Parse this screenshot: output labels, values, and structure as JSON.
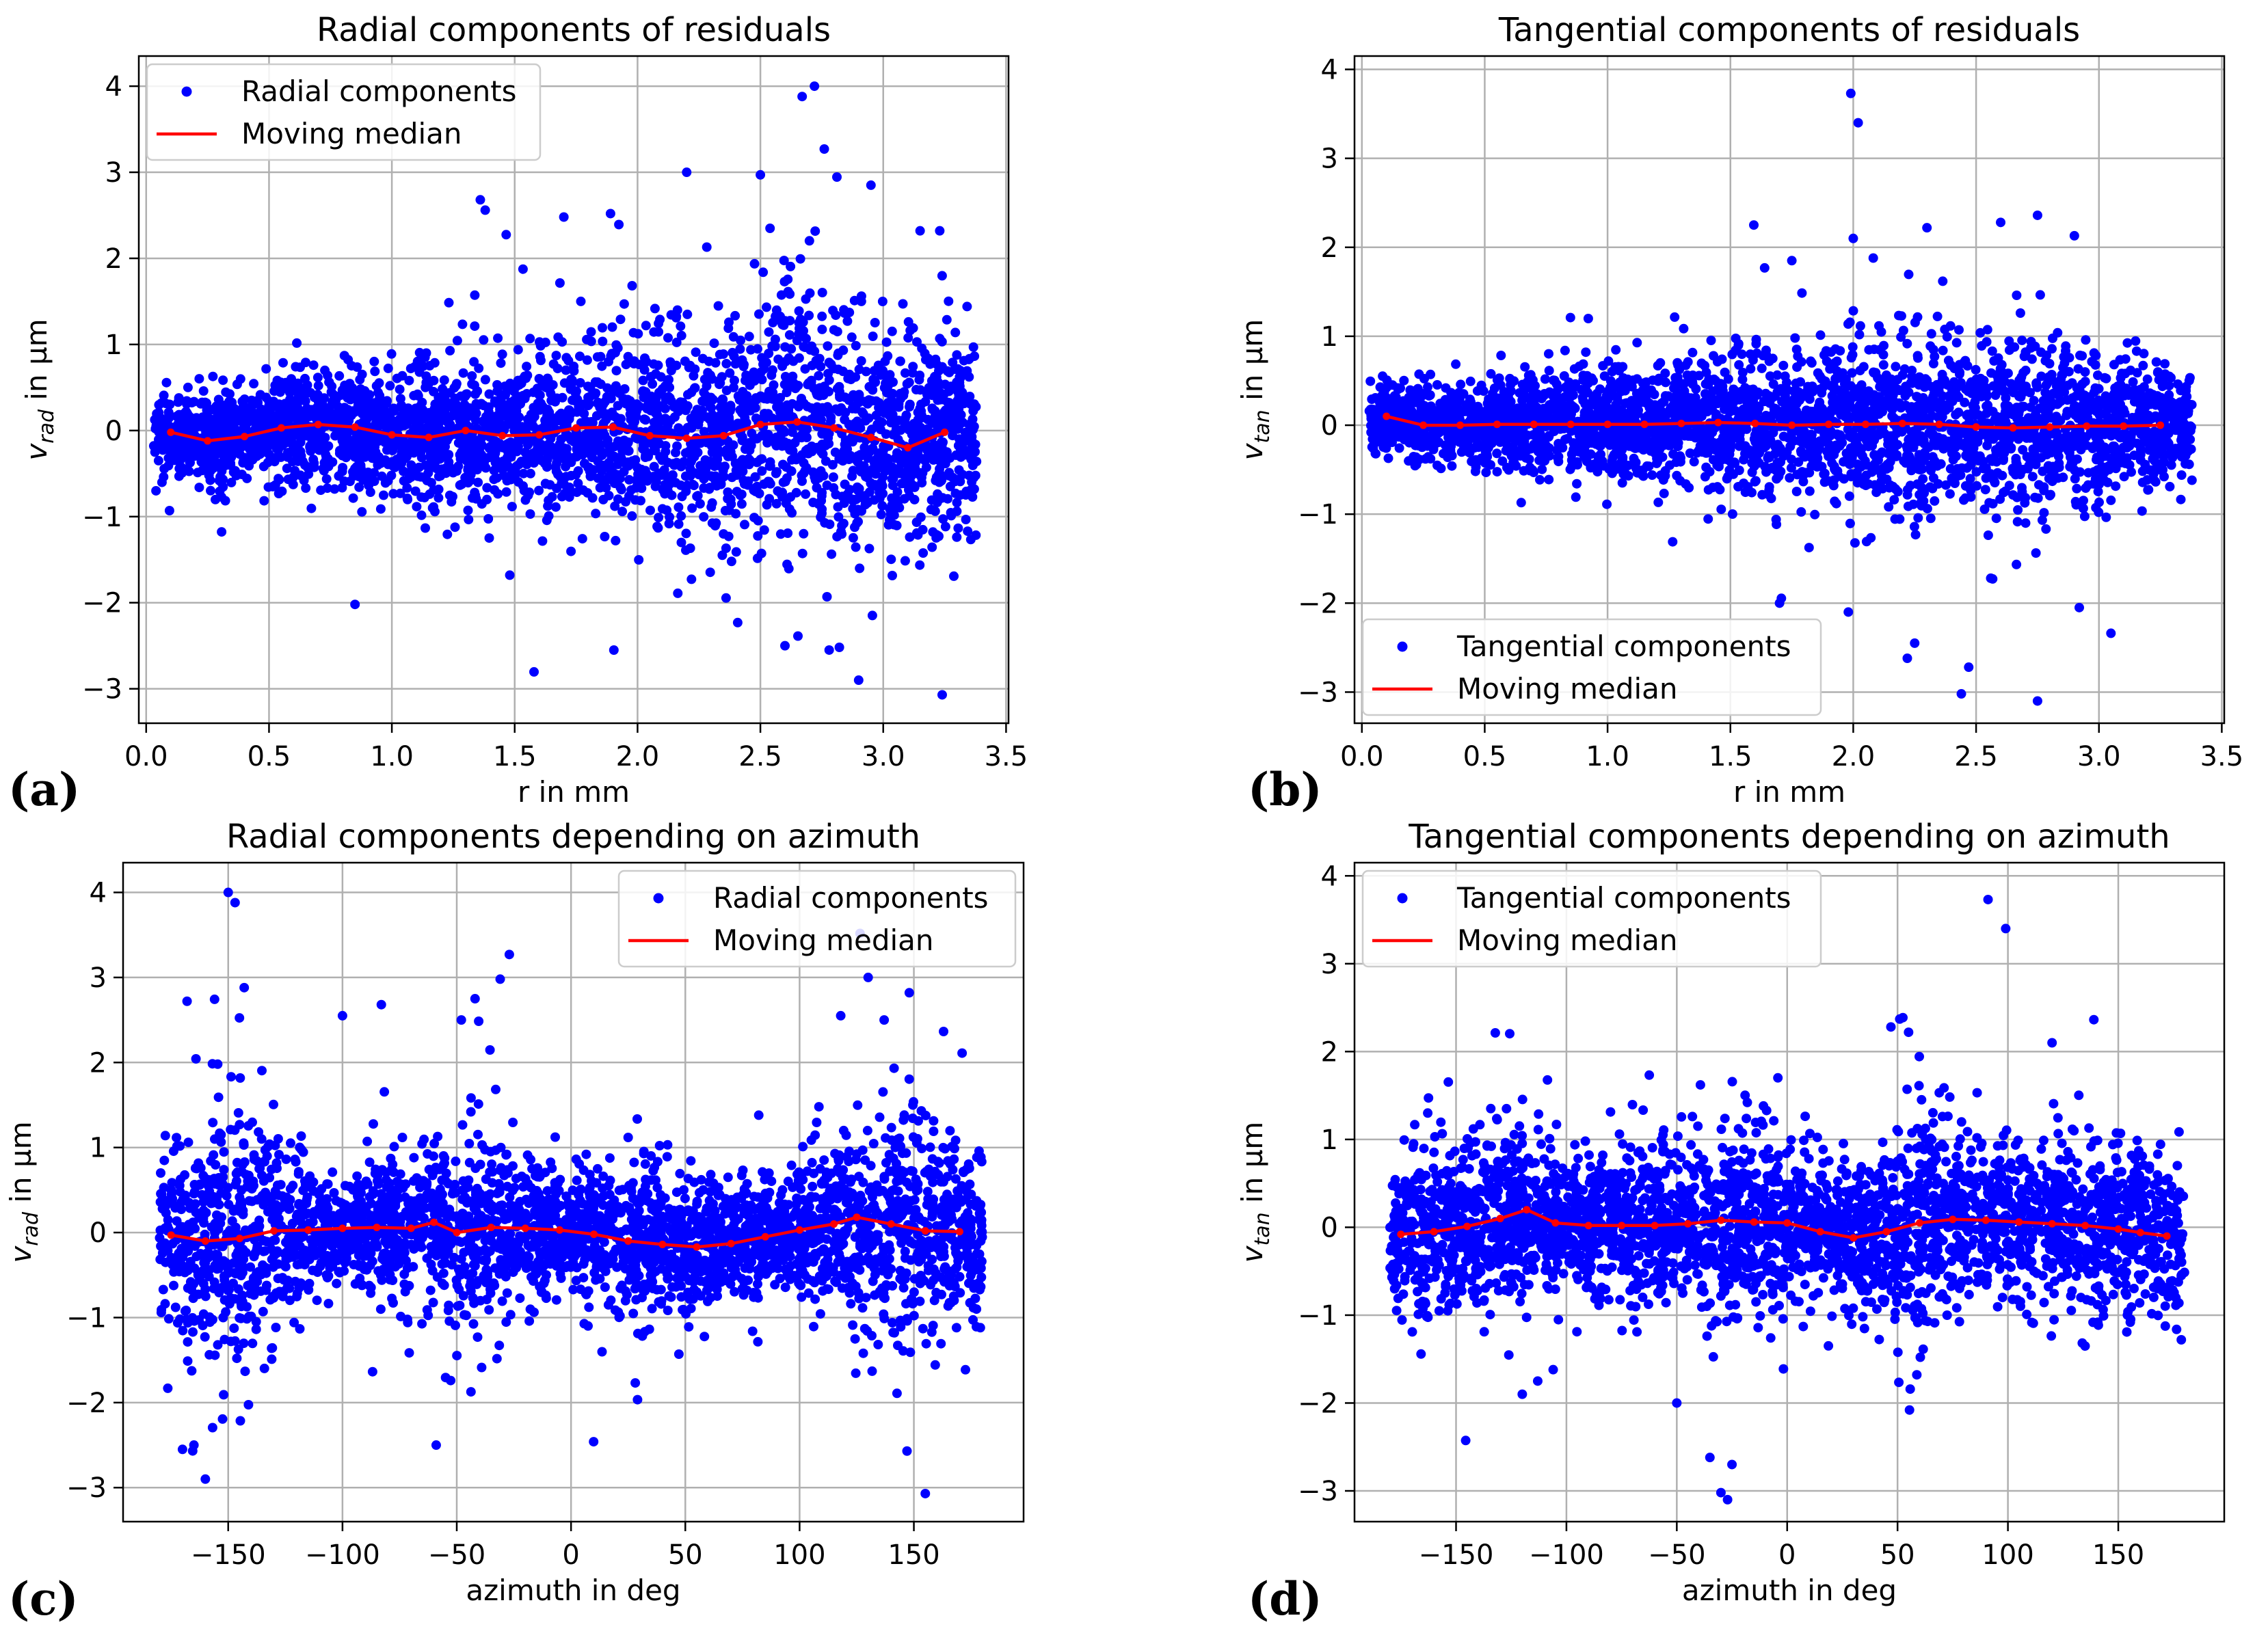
{
  "colors": {
    "points": "#0000ff",
    "median": "#ff0000",
    "grid": "#b0b0b0",
    "axis": "#000000"
  },
  "chart_data": [
    {
      "panel_label": "(a)",
      "type": "scatter",
      "title": "Radial components of residuals",
      "xlabel": "r in mm",
      "ylabel_main": "v",
      "ylabel_sub": "rad",
      "ylabel_unit": " in µm",
      "xlim": [
        -0.03,
        3.51
      ],
      "ylim": [
        -3.4,
        4.35
      ],
      "xticks": [
        0.0,
        0.5,
        1.0,
        1.5,
        2.0,
        2.5,
        3.0,
        3.5
      ],
      "xtick_labels": [
        "0.0",
        "0.5",
        "1.0",
        "1.5",
        "2.0",
        "2.5",
        "3.0",
        "3.5"
      ],
      "yticks": [
        -3,
        -2,
        -1,
        0,
        1,
        2,
        3,
        4
      ],
      "ytick_labels": [
        "−3",
        "−2",
        "−1",
        "0",
        "1",
        "2",
        "3",
        "4"
      ],
      "legend": {
        "location": "top-left",
        "entries": [
          "Radial components",
          "Moving median"
        ]
      },
      "scatter_series": {
        "name": "Radial components",
        "approx_point_count": 6000,
        "x_range": [
          0.03,
          3.38
        ],
        "typical_spread_by_x": [
          [
            0.0,
            0.22
          ],
          [
            1.0,
            0.35
          ],
          [
            2.0,
            0.55
          ],
          [
            2.7,
            0.75
          ],
          [
            3.35,
            0.55
          ]
        ],
        "outliers": [
          [
            2.72,
            4.0
          ],
          [
            2.67,
            3.88
          ],
          [
            2.76,
            3.27
          ],
          [
            2.2,
            3.0
          ],
          [
            2.5,
            2.97
          ],
          [
            2.95,
            2.85
          ],
          [
            1.36,
            2.68
          ],
          [
            1.38,
            2.56
          ],
          [
            1.89,
            2.52
          ],
          [
            1.7,
            2.48
          ],
          [
            3.15,
            2.32
          ],
          [
            3.23,
            2.32
          ],
          [
            0.85,
            -2.02
          ],
          [
            1.48,
            -1.68
          ],
          [
            3.24,
            -3.07
          ],
          [
            2.9,
            -2.9
          ],
          [
            2.78,
            -2.55
          ],
          [
            2.6,
            -2.5
          ],
          [
            0.04,
            -0.7
          ]
        ]
      },
      "median_series": {
        "name": "Moving median",
        "x": [
          0.1,
          0.25,
          0.4,
          0.55,
          0.7,
          0.85,
          1.0,
          1.15,
          1.3,
          1.45,
          1.6,
          1.75,
          1.9,
          2.05,
          2.2,
          2.35,
          2.5,
          2.65,
          2.8,
          2.95,
          3.1,
          3.25
        ],
        "y": [
          -0.02,
          -0.12,
          -0.07,
          0.03,
          0.07,
          0.04,
          -0.05,
          -0.08,
          0.0,
          -0.06,
          -0.05,
          0.03,
          0.04,
          -0.06,
          -0.09,
          -0.06,
          0.07,
          0.1,
          0.03,
          -0.08,
          -0.2,
          -0.02
        ]
      }
    },
    {
      "panel_label": "(b)",
      "type": "scatter",
      "title": "Tangential components of residuals",
      "xlabel": "r in mm",
      "ylabel_main": "v",
      "ylabel_sub": "tan",
      "ylabel_unit": " in µm",
      "xlim": [
        -0.03,
        3.51
      ],
      "ylim": [
        -3.35,
        4.15
      ],
      "xticks": [
        0.0,
        0.5,
        1.0,
        1.5,
        2.0,
        2.5,
        3.0,
        3.5
      ],
      "xtick_labels": [
        "0.0",
        "0.5",
        "1.0",
        "1.5",
        "2.0",
        "2.5",
        "3.0",
        "3.5"
      ],
      "yticks": [
        -3,
        -2,
        -1,
        0,
        1,
        2,
        3,
        4
      ],
      "ytick_labels": [
        "−3",
        "−2",
        "−1",
        "0",
        "1",
        "2",
        "3",
        "4"
      ],
      "legend": {
        "location": "bottom-left",
        "entries": [
          "Tangential components",
          "Moving median"
        ]
      },
      "scatter_series": {
        "name": "Tangential components",
        "approx_point_count": 6000,
        "x_range": [
          0.03,
          3.38
        ],
        "typical_spread_by_x": [
          [
            0.0,
            0.2
          ],
          [
            1.0,
            0.3
          ],
          [
            2.0,
            0.45
          ],
          [
            2.7,
            0.5
          ],
          [
            3.35,
            0.3
          ]
        ],
        "outliers": [
          [
            1.99,
            3.73
          ],
          [
            2.02,
            3.4
          ],
          [
            2.75,
            2.36
          ],
          [
            2.6,
            2.28
          ],
          [
            2.3,
            2.22
          ],
          [
            2.9,
            2.13
          ],
          [
            2.0,
            2.1
          ],
          [
            1.75,
            1.85
          ],
          [
            2.75,
            -3.1
          ],
          [
            2.44,
            -3.02
          ],
          [
            2.47,
            -2.72
          ],
          [
            2.22,
            -2.62
          ],
          [
            2.25,
            -2.45
          ],
          [
            1.98,
            -2.1
          ],
          [
            1.7,
            -2.0
          ],
          [
            2.92,
            -2.05
          ]
        ]
      },
      "median_series": {
        "name": "Moving median",
        "x": [
          0.1,
          0.25,
          0.4,
          0.55,
          0.7,
          0.85,
          1.0,
          1.15,
          1.3,
          1.45,
          1.6,
          1.75,
          1.9,
          2.05,
          2.2,
          2.35,
          2.5,
          2.65,
          2.8,
          2.95,
          3.1,
          3.25
        ],
        "y": [
          0.1,
          0.0,
          0.0,
          0.01,
          0.01,
          0.01,
          0.01,
          0.01,
          0.02,
          0.03,
          0.02,
          0.0,
          0.01,
          0.01,
          0.02,
          0.01,
          -0.02,
          -0.03,
          -0.02,
          -0.01,
          -0.01,
          0.0
        ]
      }
    },
    {
      "panel_label": "(c)",
      "type": "scatter",
      "title": "Radial components depending on azimuth",
      "xlabel": "azimuth in deg",
      "ylabel_main": "v",
      "ylabel_sub": "rad",
      "ylabel_unit": " in µm",
      "xlim": [
        -196,
        198
      ],
      "ylim": [
        -3.4,
        4.35
      ],
      "xticks": [
        -150,
        -100,
        -50,
        0,
        50,
        100,
        150
      ],
      "xtick_labels": [
        "−150",
        "−100",
        "−50",
        "0",
        "50",
        "100",
        "150"
      ],
      "yticks": [
        -3,
        -2,
        -1,
        0,
        1,
        2,
        3,
        4
      ],
      "ytick_labels": [
        "−3",
        "−2",
        "−1",
        "0",
        "1",
        "2",
        "3",
        "4"
      ],
      "legend": {
        "location": "top-right",
        "entries": [
          "Radial components",
          "Moving median"
        ]
      },
      "scatter_series": {
        "name": "Radial components",
        "approx_point_count": 6000,
        "x_range": [
          -180,
          180
        ],
        "typical_spread_by_x": [
          [
            -180,
            0.5
          ],
          [
            -150,
            0.75
          ],
          [
            -100,
            0.3
          ],
          [
            -40,
            0.55
          ],
          [
            0,
            0.35
          ],
          [
            30,
            0.45
          ],
          [
            90,
            0.3
          ],
          [
            140,
            0.7
          ],
          [
            180,
            0.45
          ]
        ],
        "outliers": [
          [
            -150,
            4.0
          ],
          [
            -147,
            3.88
          ],
          [
            -143,
            2.88
          ],
          [
            -168,
            2.72
          ],
          [
            -100,
            2.55
          ],
          [
            -83,
            2.68
          ],
          [
            -27,
            3.27
          ],
          [
            -31,
            2.98
          ],
          [
            -42,
            2.75
          ],
          [
            -48,
            2.5
          ],
          [
            130,
            3.0
          ],
          [
            118,
            2.55
          ],
          [
            137,
            2.5
          ],
          [
            148,
            2.82
          ],
          [
            -160,
            -2.9
          ],
          [
            -59,
            -2.5
          ],
          [
            155,
            -3.07
          ],
          [
            147,
            -2.57
          ],
          [
            -170,
            -2.55
          ],
          [
            -165,
            -2.5
          ]
        ]
      },
      "median_series": {
        "name": "Moving median",
        "x": [
          -175,
          -160,
          -145,
          -130,
          -115,
          -100,
          -85,
          -70,
          -60,
          -50,
          -35,
          -20,
          -5,
          10,
          25,
          40,
          55,
          70,
          85,
          100,
          115,
          125,
          140,
          155,
          170
        ],
        "y": [
          -0.03,
          -0.1,
          -0.07,
          0.02,
          0.03,
          0.05,
          0.06,
          0.05,
          0.12,
          0.0,
          0.06,
          0.05,
          0.03,
          -0.02,
          -0.1,
          -0.14,
          -0.17,
          -0.13,
          -0.05,
          0.03,
          0.1,
          0.18,
          0.1,
          0.02,
          0.01
        ]
      }
    },
    {
      "panel_label": "(d)",
      "type": "scatter",
      "title": "Tangential components depending on azimuth",
      "xlabel": "azimuth in deg",
      "ylabel_main": "v",
      "ylabel_sub": "tan",
      "ylabel_unit": " in µm",
      "xlim": [
        -196,
        198
      ],
      "ylim": [
        -3.35,
        4.15
      ],
      "xticks": [
        -150,
        -100,
        -50,
        0,
        50,
        100,
        150
      ],
      "xtick_labels": [
        "−150",
        "−100",
        "−50",
        "0",
        "50",
        "100",
        "150"
      ],
      "yticks": [
        -3,
        -2,
        -1,
        0,
        1,
        2,
        3,
        4
      ],
      "ytick_labels": [
        "−3",
        "−2",
        "−1",
        "0",
        "1",
        "2",
        "3",
        "4"
      ],
      "legend": {
        "location": "top-left",
        "entries": [
          "Tangential components",
          "Moving median"
        ]
      },
      "scatter_series": {
        "name": "Tangential components",
        "approx_point_count": 6000,
        "x_range": [
          -180,
          180
        ],
        "typical_spread_by_x": [
          [
            -180,
            0.4
          ],
          [
            -130,
            0.55
          ],
          [
            -100,
            0.35
          ],
          [
            -40,
            0.5
          ],
          [
            -20,
            0.6
          ],
          [
            20,
            0.35
          ],
          [
            55,
            0.65
          ],
          [
            90,
            0.4
          ],
          [
            140,
            0.45
          ],
          [
            180,
            0.45
          ]
        ],
        "outliers": [
          [
            91,
            3.73
          ],
          [
            99,
            3.4
          ],
          [
            51,
            2.37
          ],
          [
            47,
            2.28
          ],
          [
            55,
            2.22
          ],
          [
            120,
            2.1
          ],
          [
            -30,
            -3.02
          ],
          [
            -27,
            -3.1
          ],
          [
            -25,
            -2.7
          ],
          [
            -35,
            -2.62
          ],
          [
            -50,
            -2.0
          ],
          [
            -120,
            -1.9
          ],
          [
            -113,
            -1.75
          ],
          [
            -106,
            -1.62
          ]
        ]
      },
      "median_series": {
        "name": "Moving median",
        "x": [
          -175,
          -160,
          -145,
          -130,
          -118,
          -105,
          -90,
          -75,
          -60,
          -45,
          -30,
          -15,
          0,
          15,
          30,
          45,
          60,
          75,
          90,
          105,
          120,
          135,
          150,
          160,
          172
        ],
        "y": [
          -0.08,
          -0.05,
          0.01,
          0.1,
          0.2,
          0.05,
          0.02,
          0.02,
          0.02,
          0.04,
          0.08,
          0.06,
          0.05,
          -0.05,
          -0.12,
          -0.05,
          0.05,
          0.09,
          0.08,
          0.06,
          0.04,
          0.02,
          -0.02,
          -0.06,
          -0.1
        ]
      }
    }
  ]
}
